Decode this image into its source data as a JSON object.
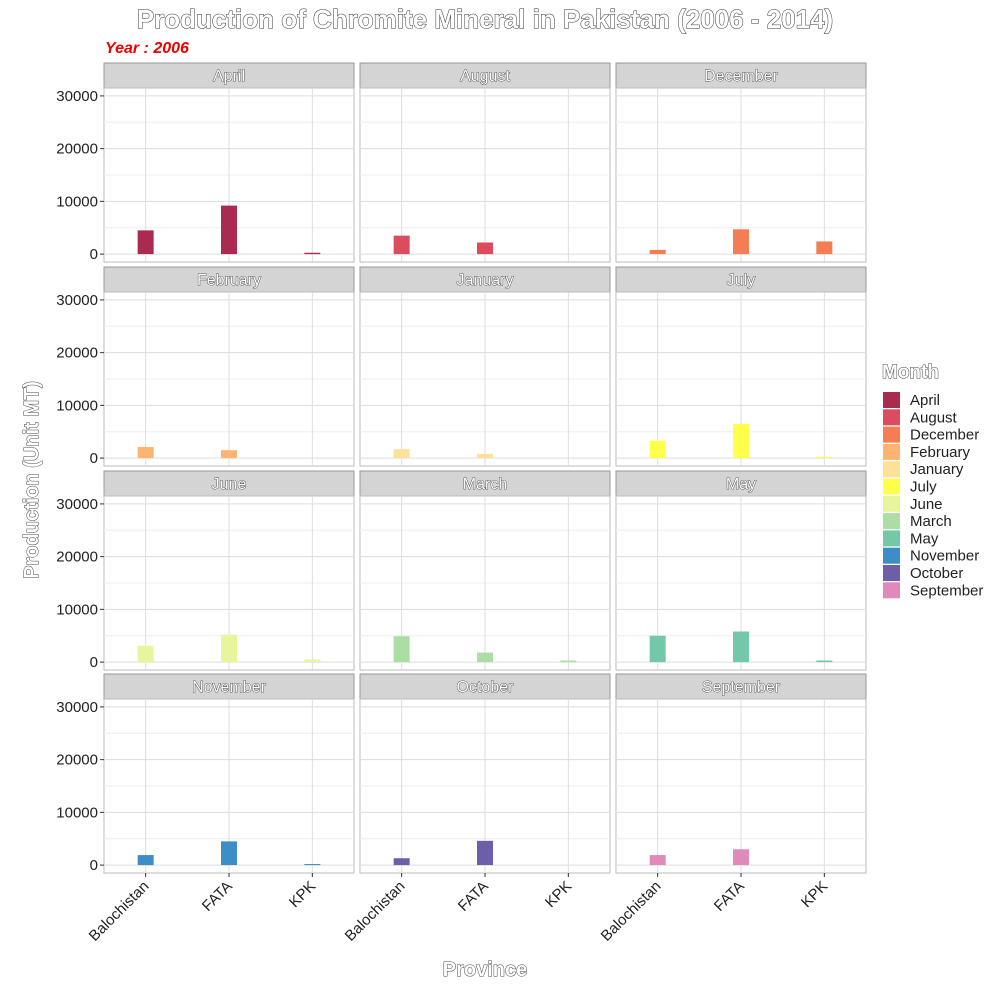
{
  "chart_data": {
    "type": "bar",
    "title": "Production of Chromite Mineral in Pakistan (2006 - 2014)",
    "subtitle": "Year : 2006",
    "xlabel": "Province",
    "ylabel": "Production (Unit MT)",
    "ylim": [
      -1500,
      31500
    ],
    "yticks": [
      0,
      10000,
      20000,
      30000
    ],
    "ytick_labels": [
      "0",
      "10000",
      "20000",
      "30000"
    ],
    "categories": [
      "Balochistan",
      "FATA",
      "KPK"
    ],
    "legend_title": "Month",
    "legend_position": "right",
    "grid": true,
    "panels": [
      {
        "name": "April",
        "color": "#ab2a51",
        "values": [
          4500,
          9200,
          250
        ]
      },
      {
        "name": "August",
        "color": "#dc4c5e",
        "values": [
          3500,
          2200,
          0
        ]
      },
      {
        "name": "December",
        "color": "#f47d54",
        "values": [
          800,
          4700,
          2400
        ]
      },
      {
        "name": "February",
        "color": "#fdb471",
        "values": [
          2100,
          1500,
          0
        ]
      },
      {
        "name": "January",
        "color": "#fde199",
        "values": [
          1700,
          800,
          0
        ]
      },
      {
        "name": "July",
        "color": "#ffff4c",
        "values": [
          3300,
          6500,
          250
        ]
      },
      {
        "name": "June",
        "color": "#e8f59c",
        "values": [
          3100,
          5200,
          500
        ]
      },
      {
        "name": "March",
        "color": "#abdda4",
        "values": [
          4900,
          1800,
          300
        ]
      },
      {
        "name": "May",
        "color": "#73c8a9",
        "values": [
          5000,
          5800,
          300
        ]
      },
      {
        "name": "November",
        "color": "#3f8dc6",
        "values": [
          1900,
          4500,
          200
        ]
      },
      {
        "name": "October",
        "color": "#6c5ea8",
        "values": [
          1300,
          4600,
          0
        ]
      },
      {
        "name": "September",
        "color": "#e089bb",
        "values": [
          1900,
          3000,
          0
        ]
      }
    ]
  }
}
